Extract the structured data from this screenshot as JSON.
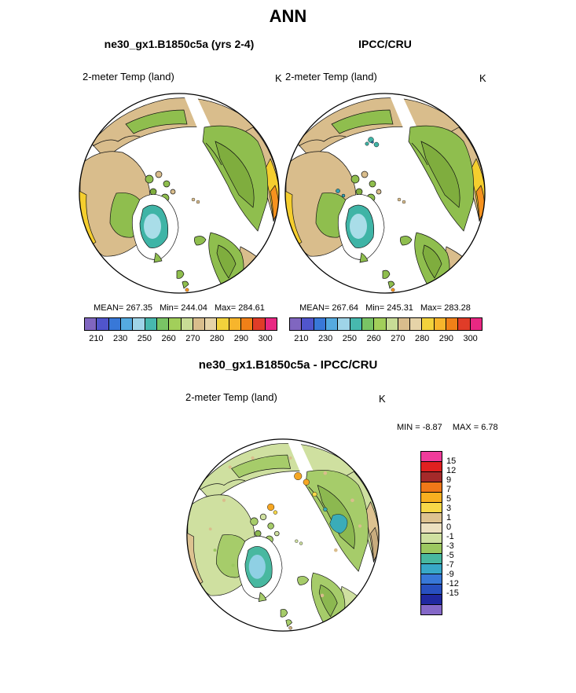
{
  "title": "ANN",
  "panels": {
    "model": {
      "header": "ne30_gx1.B1850c5a (yrs 2-4)",
      "subtitle": "2-meter Temp (land)",
      "units": "K",
      "mean": "267.35",
      "min": "244.04",
      "max": "284.61"
    },
    "obs": {
      "header": "IPCC/CRU",
      "subtitle": "2-meter Temp (land)",
      "units": "K",
      "mean": "267.64",
      "min": "245.31",
      "max": "283.28"
    }
  },
  "stats_labels": {
    "mean": "MEAN=",
    "min": "Min=",
    "max": "Max="
  },
  "colorbar_abs": {
    "ticks": [
      "210",
      "230",
      "250",
      "260",
      "270",
      "280",
      "290",
      "300"
    ],
    "colors": [
      "#8066c0",
      "#5055cc",
      "#3878d8",
      "#55aae0",
      "#9fd4e8",
      "#47b8ae",
      "#79c465",
      "#a2cf5a",
      "#c8dc96",
      "#d9bd8c",
      "#e6d3a8",
      "#f2d23c",
      "#f7b52c",
      "#f08018",
      "#e03c28",
      "#e82882"
    ]
  },
  "diff": {
    "header": "ne30_gx1.B1850c5a - IPCC/CRU",
    "subtitle": "2-meter Temp (land)",
    "units": "K",
    "min_label": "MIN =",
    "min": "-8.87",
    "max_label": "MAX =",
    "max": "6.78",
    "colorbar": {
      "labels": [
        "15",
        "12",
        "9",
        "7",
        "5",
        "3",
        "1",
        "0",
        "-1",
        "-3",
        "-5",
        "-7",
        "-9",
        "-12",
        "-15"
      ],
      "colors": [
        "#f03c9b",
        "#e02020",
        "#a52a2a",
        "#f07818",
        "#f8b020",
        "#f8d848",
        "#ddc290",
        "#ece0c0",
        "#cfe0a0",
        "#9cc860",
        "#48b8a0",
        "#38a8c8",
        "#3878d8",
        "#2850c0",
        "#2028a0",
        "#8468c8"
      ]
    }
  },
  "chart_data": {
    "type": "heatmap",
    "subtype": "polar-stereographic-map-set",
    "projection": "Northern Hemisphere polar stereographic",
    "season": "ANN",
    "variable": "2-meter Temp (land)",
    "units": "K",
    "panels": [
      {
        "title": "ne30_gx1.B1850c5a (yrs 2-4)",
        "role": "model",
        "mean": 267.35,
        "min": 244.04,
        "max": 284.61,
        "colorbar_ticks": [
          210,
          230,
          250,
          260,
          270,
          280,
          290,
          300
        ],
        "legend_position": "horizontal, below map"
      },
      {
        "title": "IPCC/CRU",
        "role": "observations",
        "mean": 267.64,
        "min": 245.31,
        "max": 283.28,
        "colorbar_ticks": [
          210,
          230,
          250,
          260,
          270,
          280,
          290,
          300
        ],
        "legend_position": "horizontal, below map"
      },
      {
        "title": "ne30_gx1.B1850c5a - IPCC/CRU",
        "role": "difference",
        "min": -8.87,
        "max": 6.78,
        "colorbar_ticks": [
          15,
          12,
          9,
          7,
          5,
          3,
          1,
          0,
          -1,
          -3,
          -5,
          -7,
          -9,
          -12,
          -15
        ],
        "legend_position": "vertical, right of map"
      }
    ]
  }
}
